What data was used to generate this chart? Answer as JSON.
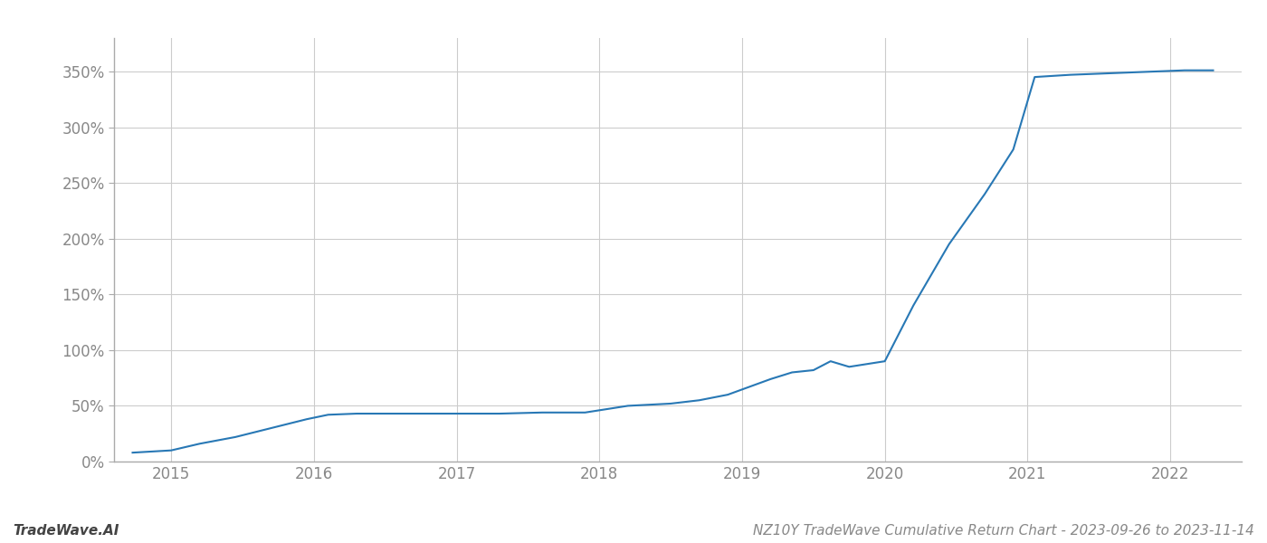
{
  "title": "NZ10Y TradeWave Cumulative Return Chart - 2023-09-26 to 2023-11-14",
  "watermark": "TradeWave.AI",
  "line_color": "#2878b5",
  "background_color": "#ffffff",
  "grid_color": "#cccccc",
  "x_values": [
    2014.73,
    2015.0,
    2015.2,
    2015.45,
    2015.7,
    2015.95,
    2016.1,
    2016.3,
    2016.5,
    2016.7,
    2017.0,
    2017.3,
    2017.6,
    2017.9,
    2018.0,
    2018.2,
    2018.5,
    2018.7,
    2018.9,
    2019.05,
    2019.2,
    2019.35,
    2019.5,
    2019.62,
    2019.75,
    2020.0,
    2020.2,
    2020.45,
    2020.7,
    2020.9,
    2021.05,
    2021.3,
    2021.5,
    2021.7,
    2021.9,
    2022.1,
    2022.3
  ],
  "y_values": [
    8,
    10,
    16,
    22,
    30,
    38,
    42,
    43,
    43,
    43,
    43,
    43,
    44,
    44,
    46,
    50,
    52,
    55,
    60,
    67,
    74,
    80,
    82,
    90,
    85,
    90,
    140,
    195,
    240,
    280,
    345,
    347,
    348,
    349,
    350,
    351,
    351
  ],
  "xlim": [
    2014.6,
    2022.5
  ],
  "ylim": [
    0,
    380
  ],
  "yticks": [
    0,
    50,
    100,
    150,
    200,
    250,
    300,
    350
  ],
  "xticks": [
    2015,
    2016,
    2017,
    2018,
    2019,
    2020,
    2021,
    2022
  ],
  "title_fontsize": 11,
  "watermark_fontsize": 11,
  "tick_label_color": "#888888",
  "line_width": 1.5,
  "fig_width": 14.0,
  "fig_height": 6.0,
  "dpi": 100
}
